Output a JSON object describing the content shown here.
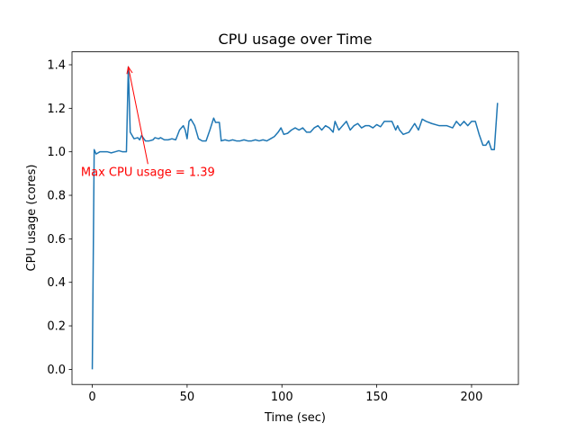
{
  "chart_data": {
    "type": "line",
    "title": "CPU usage over Time",
    "xlabel": "Time (sec)",
    "ylabel": "CPU usage (cores)",
    "color": "#1f77b4",
    "x": [
      0,
      1,
      2,
      4,
      6,
      8,
      10,
      12,
      14,
      16,
      18,
      19,
      20,
      22,
      24,
      25,
      26,
      28,
      30,
      32,
      33,
      35,
      36,
      38,
      40,
      42,
      44,
      46,
      48,
      49,
      50,
      51,
      52,
      54,
      56,
      58,
      60,
      62,
      64,
      65,
      67,
      68,
      70,
      72,
      74,
      76,
      78,
      80,
      82,
      84,
      86,
      88,
      90,
      92,
      94,
      96,
      98,
      99.5,
      101,
      103,
      105,
      107,
      109,
      111,
      113,
      115,
      117,
      119,
      121,
      123,
      125,
      127,
      128,
      130,
      132,
      134,
      136,
      138,
      140,
      142,
      144,
      146,
      148,
      150,
      152,
      154,
      156,
      158,
      160,
      161,
      162,
      164,
      167,
      170,
      172,
      174,
      176,
      179,
      183,
      187,
      190,
      192,
      194,
      196,
      198,
      200,
      202,
      204,
      206,
      207.5,
      209,
      210.5,
      212,
      213.7
    ],
    "values": [
      0,
      1.01,
      0.99,
      1.0,
      1.0,
      1.0,
      0.995,
      1.0,
      1.005,
      1.0,
      1.0,
      1.39,
      1.09,
      1.06,
      1.065,
      1.055,
      1.075,
      1.05,
      1.05,
      1.055,
      1.065,
      1.06,
      1.065,
      1.055,
      1.055,
      1.06,
      1.055,
      1.1,
      1.12,
      1.1,
      1.06,
      1.14,
      1.15,
      1.12,
      1.06,
      1.05,
      1.05,
      1.1,
      1.155,
      1.135,
      1.135,
      1.05,
      1.055,
      1.05,
      1.055,
      1.05,
      1.05,
      1.055,
      1.05,
      1.05,
      1.055,
      1.05,
      1.055,
      1.05,
      1.06,
      1.07,
      1.09,
      1.11,
      1.08,
      1.085,
      1.1,
      1.11,
      1.1,
      1.11,
      1.09,
      1.09,
      1.11,
      1.12,
      1.1,
      1.12,
      1.11,
      1.09,
      1.14,
      1.1,
      1.12,
      1.14,
      1.1,
      1.12,
      1.13,
      1.11,
      1.12,
      1.12,
      1.11,
      1.125,
      1.115,
      1.14,
      1.14,
      1.14,
      1.1,
      1.12,
      1.1,
      1.08,
      1.09,
      1.13,
      1.1,
      1.15,
      1.14,
      1.13,
      1.12,
      1.12,
      1.11,
      1.14,
      1.12,
      1.14,
      1.12,
      1.14,
      1.14,
      1.08,
      1.03,
      1.03,
      1.05,
      1.01,
      1.01,
      1.225
    ],
    "xlim": [
      -10.7,
      224.7
    ],
    "xticks": [
      0,
      50,
      100,
      150,
      200
    ],
    "ylim": [
      -0.0695,
      1.4595
    ],
    "yticks": [
      {
        "value": 0,
        "label": "0.0"
      },
      0.2,
      0.4,
      0.6,
      0.8,
      {
        "value": 1,
        "label": "1.0"
      },
      1.2,
      1.4
    ],
    "annotation": {
      "text": "Max CPU usage = 1.39",
      "xy": [
        19,
        1.39
      ],
      "xytext": [
        -6,
        0.89
      ],
      "color": "#ff0000"
    }
  }
}
